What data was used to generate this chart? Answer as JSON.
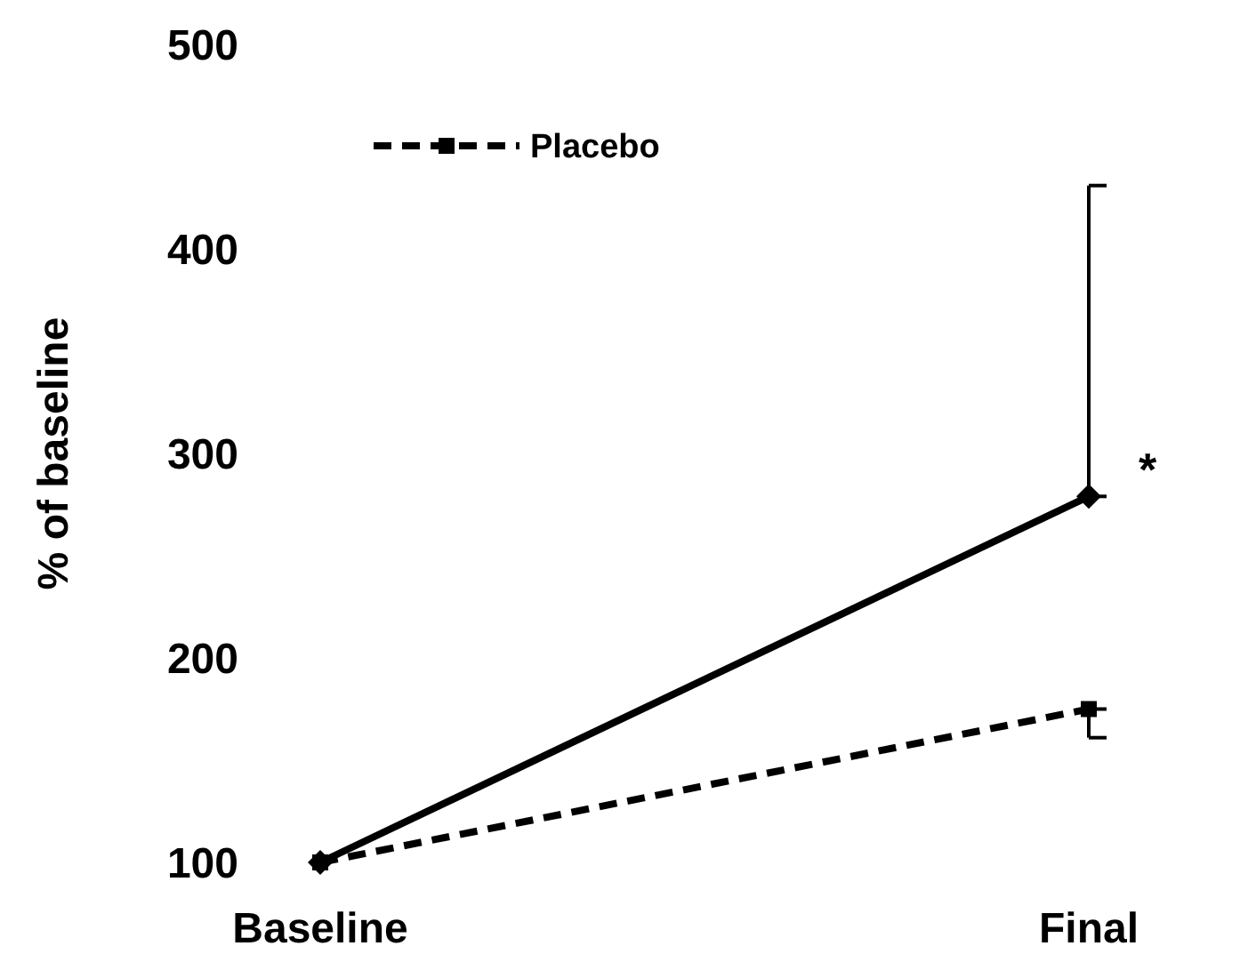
{
  "chart_data": {
    "type": "line",
    "ylabel": "% of baseline",
    "categories": [
      "Baseline",
      "Final"
    ],
    "ylim": [
      100,
      500
    ],
    "yticks": [
      100,
      200,
      300,
      400,
      500
    ],
    "grid": false,
    "legend": "top left",
    "series": [
      {
        "color": "#000000",
        "values": [
          100,
          279
        ],
        "errors": [
          null,
          [
            279,
            431
          ]
        ],
        "marker": "diamond",
        "line_style": "solid"
      },
      {
        "name": "Placebo",
        "color": "#000000",
        "values": [
          100,
          175
        ],
        "errors": [
          null,
          [
            161,
            175
          ]
        ],
        "marker": "square",
        "line_style": "dashed"
      }
    ],
    "annotations": [
      {
        "text": "*",
        "x": "Final",
        "y": 300
      }
    ]
  }
}
